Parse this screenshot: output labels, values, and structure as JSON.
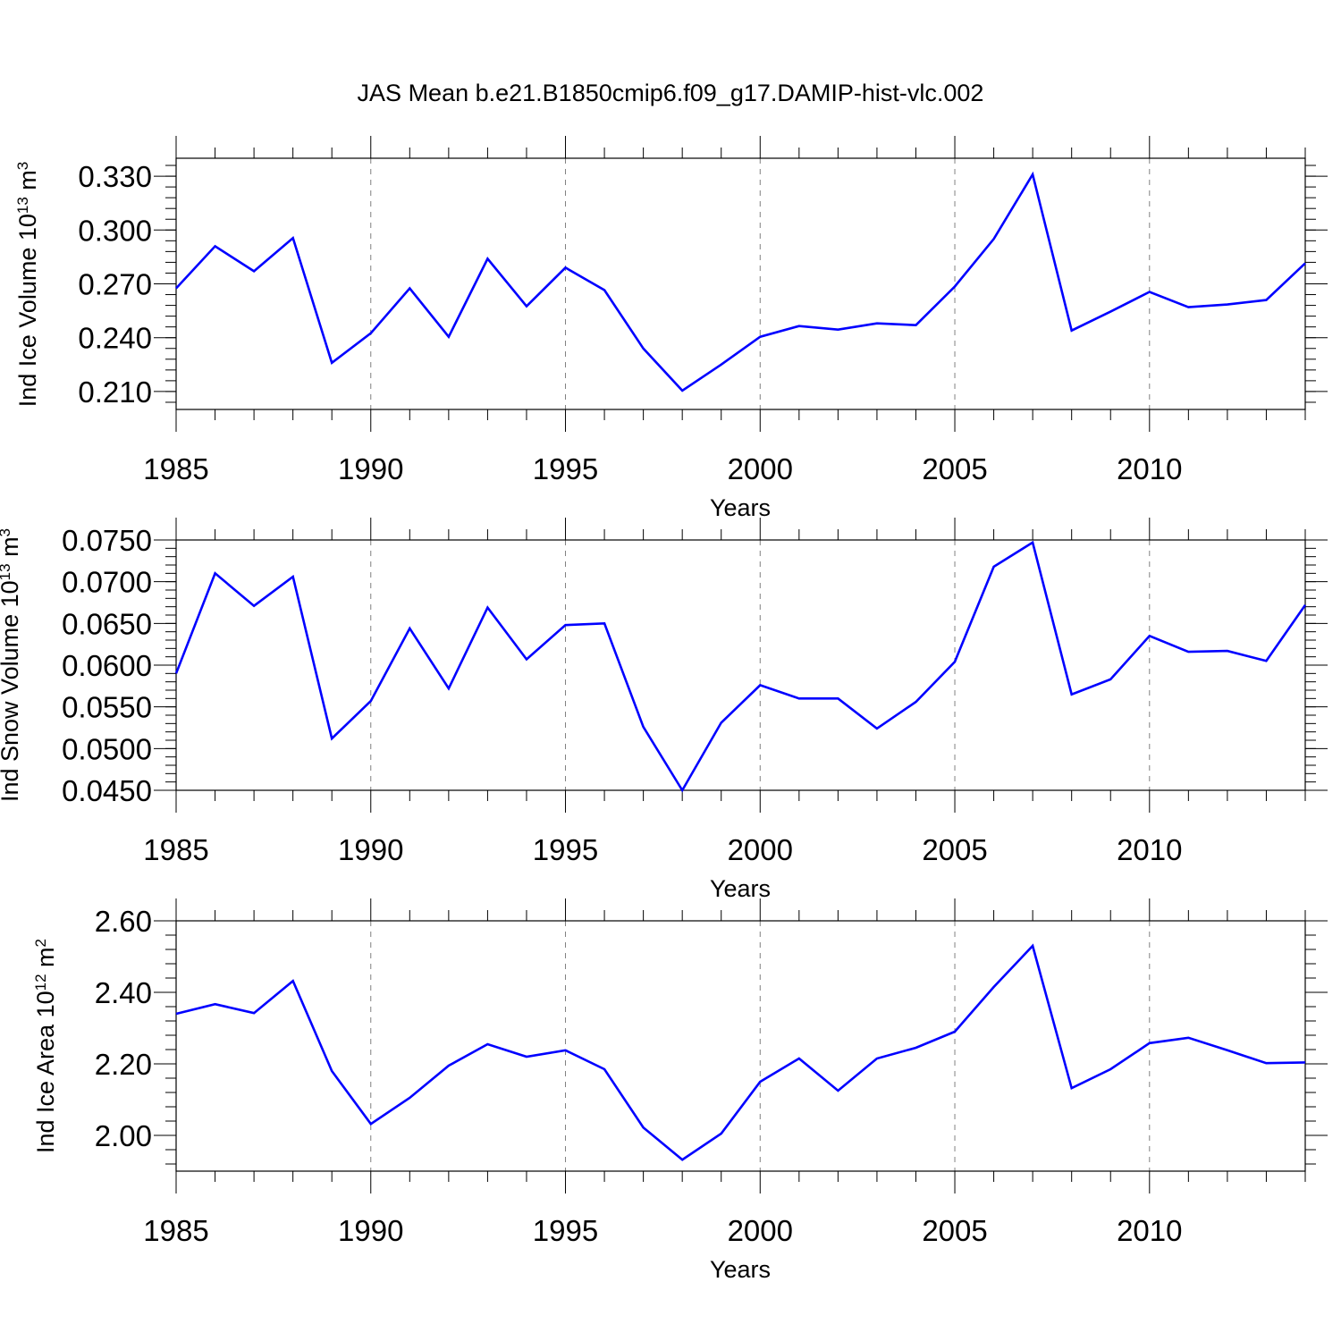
{
  "figure": {
    "title": "JAS Mean b.e21.B1850cmip6.f09_g17.DAMIP-hist-vlc.002",
    "line_color": "#0000ff",
    "grid_color": "#808080"
  },
  "chart_data": [
    {
      "type": "line",
      "ylabel_prefix": "Ind Ice Volume 10",
      "ylabel_exp": "13",
      "ylabel_unit": " m",
      "ylabel_unit_exp": "3",
      "xlabel": "Years",
      "xlim": [
        1985,
        2014
      ],
      "ylim": [
        0.2,
        0.34
      ],
      "xticks": [
        "1985",
        "1990",
        "1995",
        "2000",
        "2005",
        "2010"
      ],
      "yticks": [
        "0.210",
        "0.240",
        "0.270",
        "0.300",
        "0.330"
      ],
      "x": [
        1985,
        1986,
        1987,
        1988,
        1989,
        1990,
        1991,
        1992,
        1993,
        1994,
        1995,
        1996,
        1997,
        1998,
        1999,
        2000,
        2001,
        2002,
        2003,
        2004,
        2005,
        2006,
        2007,
        2008,
        2009,
        2010,
        2011,
        2012,
        2013,
        2014
      ],
      "values": [
        0.2675,
        0.291,
        0.277,
        0.2955,
        0.226,
        0.2425,
        0.2675,
        0.2405,
        0.284,
        0.2575,
        0.279,
        0.2665,
        0.234,
        0.2105,
        0.225,
        0.2405,
        0.2465,
        0.2445,
        0.248,
        0.247,
        0.2685,
        0.295,
        0.331,
        0.244,
        0.2545,
        0.2655,
        0.257,
        0.2585,
        0.261,
        0.2815
      ]
    },
    {
      "type": "line",
      "ylabel_prefix": "Ind Snow Volume 10",
      "ylabel_exp": "13",
      "ylabel_unit": " m",
      "ylabel_unit_exp": "3",
      "xlabel": "Years",
      "xlim": [
        1985,
        2014
      ],
      "ylim": [
        0.045,
        0.075
      ],
      "xticks": [
        "1985",
        "1990",
        "1995",
        "2000",
        "2005",
        "2010"
      ],
      "yticks": [
        "0.0450",
        "0.0500",
        "0.0550",
        "0.0600",
        "0.0650",
        "0.0700",
        "0.0750"
      ],
      "x": [
        1985,
        1986,
        1987,
        1988,
        1989,
        1990,
        1991,
        1992,
        1993,
        1994,
        1995,
        1996,
        1997,
        1998,
        1999,
        2000,
        2001,
        2002,
        2003,
        2004,
        2005,
        2006,
        2007,
        2008,
        2009,
        2010,
        2011,
        2012,
        2013,
        2014
      ],
      "values": [
        0.059,
        0.071,
        0.0671,
        0.0706,
        0.0512,
        0.0557,
        0.0644,
        0.0572,
        0.0669,
        0.0607,
        0.0648,
        0.065,
        0.0526,
        0.045,
        0.0531,
        0.0576,
        0.056,
        0.056,
        0.0524,
        0.0556,
        0.0604,
        0.0718,
        0.0747,
        0.0565,
        0.0583,
        0.0635,
        0.0616,
        0.0617,
        0.0605,
        0.0672
      ]
    },
    {
      "type": "line",
      "ylabel_prefix": "Ind Ice Area 10",
      "ylabel_exp": "12",
      "ylabel_unit": " m",
      "ylabel_unit_exp": "2",
      "xlabel": "Years",
      "xlim": [
        1985,
        2014
      ],
      "ylim": [
        1.9,
        2.6
      ],
      "xticks": [
        "1985",
        "1990",
        "1995",
        "2000",
        "2005",
        "2010"
      ],
      "yticks": [
        "2.00",
        "2.20",
        "2.40",
        "2.60"
      ],
      "x": [
        1985,
        1986,
        1987,
        1988,
        1989,
        1990,
        1991,
        1992,
        1993,
        1994,
        1995,
        1996,
        1997,
        1998,
        1999,
        2000,
        2001,
        2002,
        2003,
        2004,
        2005,
        2006,
        2007,
        2008,
        2009,
        2010,
        2011,
        2012,
        2013,
        2014
      ],
      "values": [
        2.34,
        2.367,
        2.342,
        2.432,
        2.18,
        2.032,
        2.105,
        2.195,
        2.255,
        2.22,
        2.238,
        2.185,
        2.022,
        1.932,
        2.005,
        2.15,
        2.215,
        2.125,
        2.215,
        2.245,
        2.29,
        2.415,
        2.53,
        2.132,
        2.185,
        2.258,
        2.273,
        2.238,
        2.202,
        2.204
      ]
    }
  ]
}
